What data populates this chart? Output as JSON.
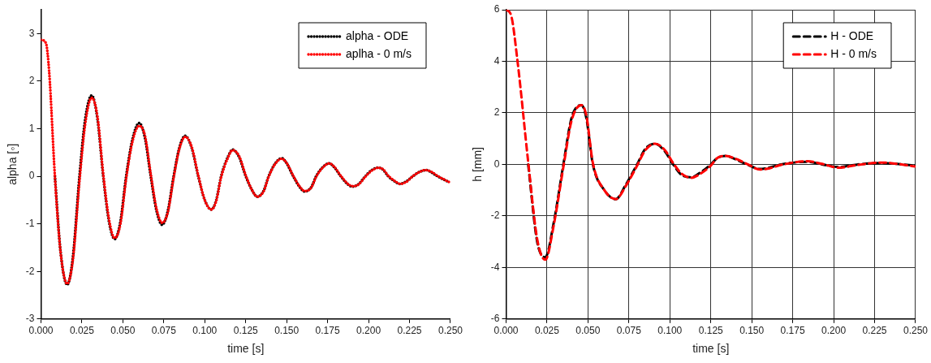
{
  "chart_data": [
    {
      "type": "line",
      "xlabel": "time [s]",
      "ylabel": "alpha [◦]",
      "xlim": [
        0,
        0.25
      ],
      "ylim": [
        -3,
        3.5
      ],
      "xticks": [
        {
          "value": 0,
          "label": "0.000"
        },
        {
          "value": 0.025,
          "label": "0.025"
        },
        {
          "value": 0.05,
          "label": "0.050"
        },
        {
          "value": 0.075,
          "label": "0.075"
        },
        {
          "value": 0.1,
          "label": "0.100"
        },
        {
          "value": 0.125,
          "label": "0.125"
        },
        {
          "value": 0.15,
          "label": "0.150"
        },
        {
          "value": 0.175,
          "label": "0.175"
        },
        {
          "value": 0.2,
          "label": "0.200"
        },
        {
          "value": 0.225,
          "label": "0.225"
        },
        {
          "value": 0.25,
          "label": "0.250"
        }
      ],
      "yticks": [
        -3,
        -2,
        -1,
        0,
        1,
        2,
        3
      ],
      "grid": false,
      "legend": "top right",
      "marker": "none",
      "line_style": "dotted",
      "x": [
        0,
        0.003,
        0.005,
        0.0085,
        0.012,
        0.016,
        0.0195,
        0.0235,
        0.027,
        0.031,
        0.0345,
        0.038,
        0.0415,
        0.045,
        0.0485,
        0.052,
        0.056,
        0.06,
        0.0635,
        0.067,
        0.0705,
        0.074,
        0.0775,
        0.081,
        0.0845,
        0.088,
        0.092,
        0.096,
        0.1,
        0.104,
        0.107,
        0.11,
        0.114,
        0.117,
        0.121,
        0.125,
        0.129,
        0.132,
        0.136,
        0.139,
        0.143,
        0.147,
        0.15,
        0.154,
        0.158,
        0.161,
        0.165,
        0.168,
        0.172,
        0.176,
        0.179,
        0.183,
        0.187,
        0.19,
        0.194,
        0.198,
        0.202,
        0.206,
        0.209,
        0.212,
        0.216,
        0.219,
        0.223,
        0.227,
        0.231,
        0.235,
        0.238,
        0.242,
        0.249
      ],
      "series": [
        {
          "name": "alpha - ODE",
          "color": "#000000",
          "values": [
            null,
            null,
            null,
            0,
            -1.6,
            -2.28,
            -1.7,
            0,
            1.2,
            1.7,
            1.2,
            0,
            -0.95,
            -1.32,
            -0.95,
            0,
            0.8,
            1.12,
            0.8,
            0,
            -0.72,
            -1.02,
            -0.72,
            0,
            0.6,
            0.85,
            0.6,
            0,
            -0.5,
            -0.7,
            -0.5,
            0,
            0.4,
            0.56,
            0.4,
            0,
            -0.3,
            -0.43,
            -0.3,
            0,
            0.27,
            0.38,
            0.27,
            0,
            -0.23,
            -0.32,
            -0.23,
            0,
            0.19,
            0.27,
            0.19,
            0,
            -0.16,
            -0.22,
            -0.16,
            0,
            0.13,
            0.18,
            0.13,
            0,
            -0.11,
            -0.16,
            -0.11,
            0,
            0.09,
            0.13,
            0.09,
            0,
            -0.12
          ]
        },
        {
          "name": "aplha - 0 m/s",
          "color": "#ff0000",
          "values": [
            2.87,
            2.8,
            2.2,
            0,
            -1.6,
            -2.26,
            -1.75,
            -0.1,
            1.1,
            1.65,
            1.25,
            0.05,
            -0.9,
            -1.3,
            -1.0,
            -0.05,
            0.75,
            1.06,
            0.85,
            0.05,
            -0.68,
            -0.98,
            -0.75,
            -0.03,
            0.58,
            0.83,
            0.62,
            0.02,
            -0.5,
            -0.7,
            -0.52,
            -0.02,
            0.38,
            0.55,
            0.42,
            0.02,
            -0.3,
            -0.43,
            -0.31,
            -0.01,
            0.26,
            0.37,
            0.28,
            0.01,
            -0.22,
            -0.31,
            -0.24,
            -0.01,
            0.18,
            0.27,
            0.2,
            0.01,
            -0.15,
            -0.21,
            -0.17,
            -0.01,
            0.12,
            0.18,
            0.14,
            0.01,
            -0.1,
            -0.16,
            -0.12,
            0,
            0.09,
            0.13,
            0.1,
            0.01,
            -0.12
          ]
        }
      ]
    },
    {
      "type": "line",
      "xlabel": "time [s]",
      "ylabel": "h [mm]",
      "xlim": [
        0,
        0.25
      ],
      "ylim": [
        -6,
        6
      ],
      "xticks": [
        {
          "value": 0,
          "label": "0.000"
        },
        {
          "value": 0.025,
          "label": "0.025"
        },
        {
          "value": 0.05,
          "label": "0.050"
        },
        {
          "value": 0.075,
          "label": "0.075"
        },
        {
          "value": 0.1,
          "label": "0.100"
        },
        {
          "value": 0.125,
          "label": "0.125"
        },
        {
          "value": 0.15,
          "label": "0.150"
        },
        {
          "value": 0.175,
          "label": "0.175"
        },
        {
          "value": 0.2,
          "label": "0.200"
        },
        {
          "value": 0.225,
          "label": "0.225"
        },
        {
          "value": 0.25,
          "label": "0.250"
        }
      ],
      "yticks": [
        -6,
        -4,
        -2,
        0,
        2,
        4,
        6
      ],
      "grid": true,
      "legend": "top right",
      "marker": "none",
      "line_style": "dashed",
      "x": [
        0,
        0.003,
        0.007,
        0.0135,
        0.019,
        0.024,
        0.029,
        0.035,
        0.04,
        0.046,
        0.049,
        0.053,
        0.06,
        0.067,
        0.073,
        0.08,
        0.085,
        0.091,
        0.097,
        0.102,
        0.107,
        0.113,
        0.119,
        0.125,
        0.129,
        0.134,
        0.14,
        0.147,
        0.155,
        0.161,
        0.168,
        0.184,
        0.193,
        0.203,
        0.215,
        0.229,
        0.25
      ],
      "series": [
        {
          "name": "H - ODE",
          "color": "#000000",
          "values": [
            null,
            null,
            null,
            0,
            -3.0,
            -3.6,
            -2.3,
            0,
            1.8,
            2.3,
            1.8,
            0,
            -1.0,
            -1.35,
            -0.8,
            0,
            0.6,
            0.8,
            0.5,
            0,
            -0.4,
            -0.5,
            -0.3,
            0,
            0.25,
            0.33,
            0.2,
            0,
            -0.18,
            -0.12,
            0,
            0.1,
            0,
            -0.1,
            0,
            0.05,
            -0.05
          ]
        },
        {
          "name": "H - 0 m/s",
          "color": "#ff0000",
          "values": [
            6.0,
            5.8,
            4.0,
            0.1,
            -2.9,
            -3.7,
            -2.4,
            -0.1,
            1.7,
            2.3,
            1.9,
            0.05,
            -1.0,
            -1.35,
            -0.85,
            -0.05,
            0.55,
            0.8,
            0.55,
            0.05,
            -0.35,
            -0.52,
            -0.35,
            -0.05,
            0.25,
            0.33,
            0.22,
            0.02,
            -0.2,
            -0.15,
            -0.02,
            0.12,
            0.02,
            -0.13,
            -0.02,
            0.07,
            -0.08
          ]
        }
      ]
    }
  ]
}
